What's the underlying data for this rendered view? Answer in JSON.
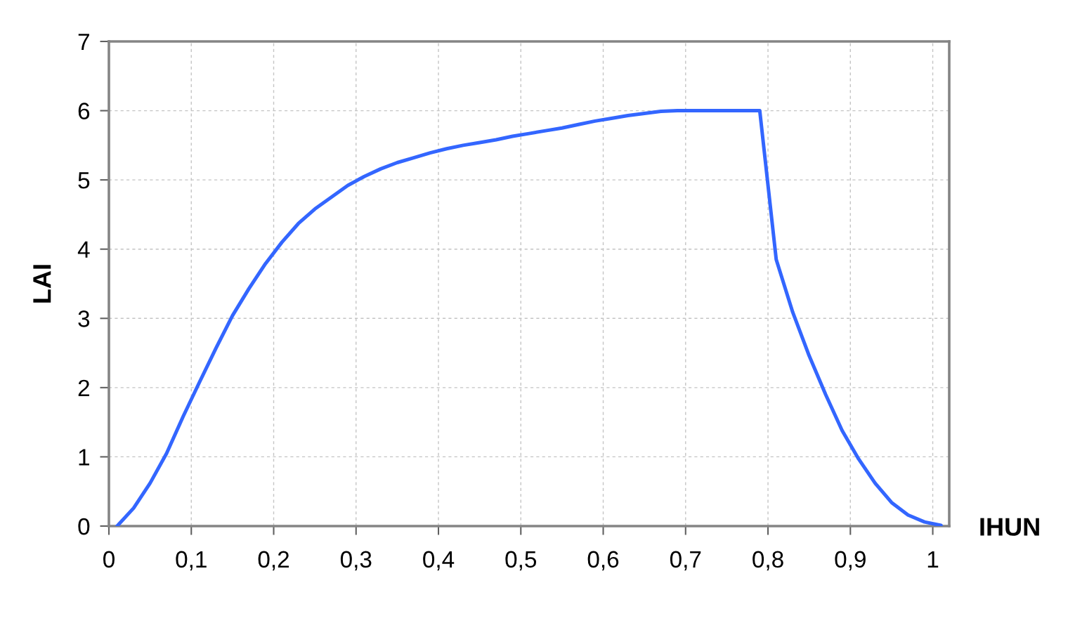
{
  "chart_data": {
    "type": "line",
    "xlabel": "IHUN",
    "ylabel": "LAI",
    "x": [
      0.01,
      0.03,
      0.05,
      0.07,
      0.09,
      0.11,
      0.13,
      0.15,
      0.17,
      0.19,
      0.21,
      0.23,
      0.25,
      0.27,
      0.29,
      0.31,
      0.33,
      0.35,
      0.37,
      0.39,
      0.41,
      0.43,
      0.45,
      0.47,
      0.49,
      0.51,
      0.53,
      0.55,
      0.57,
      0.59,
      0.61,
      0.63,
      0.65,
      0.67,
      0.69,
      0.71,
      0.73,
      0.75,
      0.77,
      0.79,
      0.81,
      0.83,
      0.85,
      0.87,
      0.89,
      0.91,
      0.93,
      0.95,
      0.97,
      0.99,
      1.01
    ],
    "series": [
      {
        "color": "#3366ff",
        "values": [
          0,
          0.26,
          0.62,
          1.05,
          1.58,
          2.08,
          2.57,
          3.04,
          3.43,
          3.79,
          4.1,
          4.37,
          4.58,
          4.75,
          4.92,
          5.05,
          5.16,
          5.25,
          5.32,
          5.39,
          5.45,
          5.5,
          5.54,
          5.58,
          5.63,
          5.67,
          5.71,
          5.75,
          5.8,
          5.85,
          5.89,
          5.93,
          5.96,
          5.99,
          6,
          6,
          6,
          6,
          6,
          6,
          3.85,
          3.09,
          2.46,
          1.9,
          1.38,
          0.97,
          0.62,
          0.34,
          0.16,
          0.06,
          0.01
        ]
      }
    ],
    "xlim": [
      0,
      1.02
    ],
    "ylim": [
      0,
      7
    ],
    "xticks": [
      0,
      {
        "value": 0.1,
        "label": "0,1"
      },
      {
        "value": 0.2,
        "label": "0,2"
      },
      {
        "value": 0.3,
        "label": "0,3"
      },
      {
        "value": 0.4,
        "label": "0,4"
      },
      {
        "value": 0.5,
        "label": "0,5"
      },
      {
        "value": 0.6,
        "label": "0,6"
      },
      {
        "value": 0.7,
        "label": "0,7"
      },
      {
        "value": 0.8,
        "label": "0,8"
      },
      {
        "value": 0.9,
        "label": "0,9"
      },
      1
    ],
    "yticks": [
      0,
      1,
      2,
      3,
      4,
      5,
      6,
      7
    ],
    "grid": true,
    "marker": "none",
    "line_style": "solid"
  }
}
